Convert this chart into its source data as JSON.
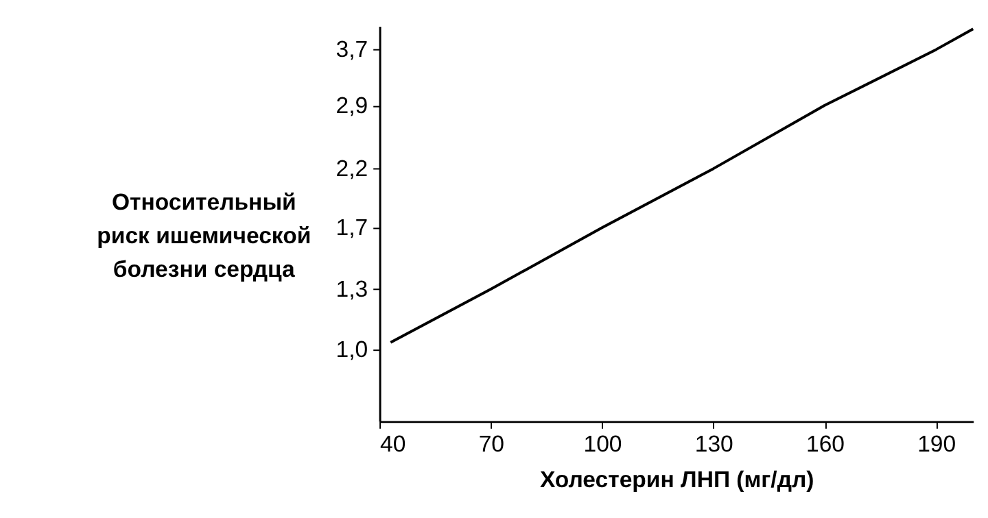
{
  "chart_data": {
    "type": "line",
    "xlabel": "Холестерин ЛНП (мг/дл)",
    "ylabel": "Относительный\nриск ишемической\nболезни сердца",
    "x": [
      43,
      70,
      100,
      130,
      160,
      190,
      200
    ],
    "series": [
      {
        "color": "#000000",
        "values": [
          1.03,
          1.3,
          1.7,
          2.2,
          2.9,
          3.7,
          4.05
        ]
      }
    ],
    "xlim": [
      40,
      200
    ],
    "xticks": [
      40,
      70,
      100,
      130,
      160,
      190
    ],
    "ylim": [
      0.73,
      4.1
    ],
    "yticks": [
      {
        "value": 1.0,
        "label": "1,0"
      },
      {
        "value": 1.3,
        "label": "1,3"
      },
      {
        "value": 1.7,
        "label": "1,7"
      },
      {
        "value": 2.2,
        "label": "2,2"
      },
      {
        "value": 2.9,
        "label": "2,9"
      },
      {
        "value": 3.7,
        "label": "3,7"
      }
    ],
    "log": "y",
    "grid": false,
    "marker": "none",
    "line_style": "solid"
  }
}
